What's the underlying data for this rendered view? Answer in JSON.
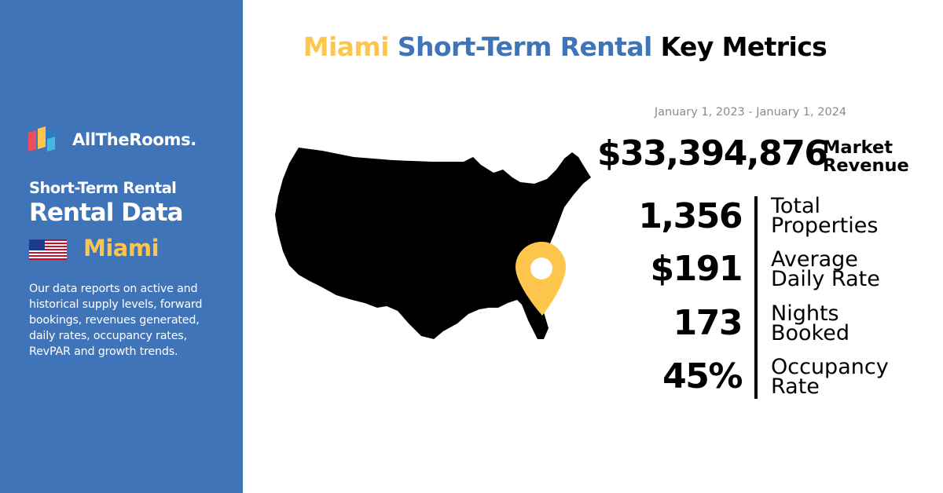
{
  "sidebar": {
    "brand": "AllTheRooms.",
    "subtitle": "Short-Term Rental",
    "title": "Rental Data",
    "city": "Miami",
    "description": "Our data reports on active and historical supply levels, forward bookings, revenues generated, daily rates, occupancy rates, RevPAR and growth trends.",
    "flag_icon": "us-flag-icon",
    "colors": {
      "background": "#3f74b8",
      "accent": "#fec54d"
    }
  },
  "headline": {
    "city": "Miami",
    "middle": "Short-Term Rental",
    "end": "Key Metrics"
  },
  "map": {
    "icon": "usa-map-icon",
    "pin_icon": "location-pin-icon",
    "pin_color": "#fec54d"
  },
  "metrics": {
    "date_range": "January 1, 2023 - January 1, 2024",
    "revenue": {
      "value": "$33,394,876",
      "label_line1": "Market",
      "label_line2": "Revenue"
    },
    "items": [
      {
        "value": "1,356",
        "label_line1": "Total",
        "label_line2": "Properties"
      },
      {
        "value": "$191",
        "label_line1": "Average",
        "label_line2": "Daily Rate"
      },
      {
        "value": "173",
        "label_line1": "Nights",
        "label_line2": "Booked"
      },
      {
        "value": "45%",
        "label_line1": "Occupancy",
        "label_line2": "Rate"
      }
    ]
  }
}
